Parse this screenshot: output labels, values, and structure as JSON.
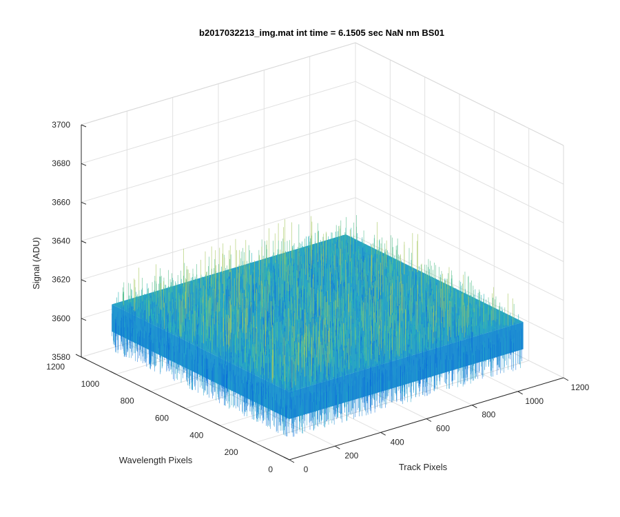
{
  "chart_data": {
    "type": "surface-3d",
    "title": "b2017032213_img.mat int time = 6.1505 sec  NaN nm BS01",
    "zlabel": "Signal (ADU)",
    "ylabel": "Wavelength Pixels",
    "xlabel": "Track Pixels",
    "x_label_axis": "Track Pixels",
    "xlim": [
      0,
      1200
    ],
    "ylim": [
      0,
      1200
    ],
    "zlim": [
      3580,
      3700
    ],
    "xticks": [
      0,
      200,
      400,
      600,
      800,
      1000,
      1200
    ],
    "yticks": [
      0,
      200,
      400,
      600,
      800,
      1000,
      1200
    ],
    "zticks": [
      3580,
      3600,
      3620,
      3640,
      3660,
      3680,
      3700
    ],
    "xtick_labels": [
      "0",
      "200",
      "400",
      "600",
      "800",
      "1000",
      "1200"
    ],
    "ytick_labels": [
      "0",
      "200",
      "400",
      "600",
      "800",
      "1000",
      "1200"
    ],
    "ztick_labels": [
      "3580",
      "3600",
      "3620",
      "3640",
      "3660",
      "3680",
      "3700"
    ],
    "grid": true,
    "data_extent": {
      "x": [
        0,
        1024
      ],
      "y": [
        0,
        1024
      ]
    },
    "signal_mean": 3615,
    "signal_range": [
      3585,
      3655
    ],
    "colormap": [
      "#0b6fd9",
      "#1a86d3",
      "#20a0c9",
      "#2bb5b5",
      "#5cc090",
      "#a8c860"
    ]
  }
}
